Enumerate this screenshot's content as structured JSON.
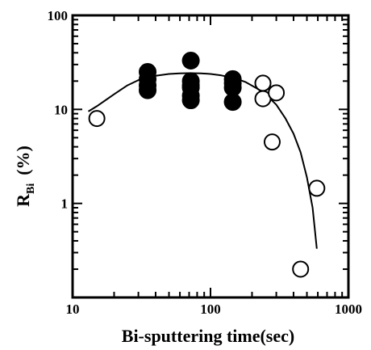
{
  "chart_data": {
    "type": "scatter",
    "xlabel": "Bi-sputtering time(sec)",
    "ylabel": {
      "main": "R",
      "sub": "Bi",
      "unit": "(%)"
    },
    "x_scale": "log",
    "y_scale": "log",
    "xlim": [
      10,
      1000
    ],
    "ylim": [
      0.1,
      100
    ],
    "x_ticks": [
      "10",
      "100",
      "1000"
    ],
    "y_ticks": [
      "1",
      "10",
      "100"
    ],
    "grid": false,
    "series": [
      {
        "marker": "filled-circle",
        "x": [
          35,
          35,
          35,
          35,
          72,
          72,
          72,
          72,
          72,
          72,
          145,
          145,
          145,
          145
        ],
        "y": [
          25,
          21,
          18,
          16,
          33,
          20,
          17,
          14,
          12.5,
          18,
          21,
          19,
          17,
          12
        ]
      },
      {
        "marker": "open-circle",
        "x": [
          15,
          240,
          240,
          300,
          280,
          450,
          590
        ],
        "y": [
          8,
          19,
          13,
          15,
          4.5,
          0.2,
          1.45
        ]
      }
    ],
    "fit_curve": {
      "x": [
        13,
        15,
        20,
        25,
        30,
        40,
        50,
        60,
        70,
        85,
        100,
        120,
        150,
        180,
        220,
        260,
        300,
        350,
        400,
        450,
        500,
        550,
        590
      ],
      "y": [
        9.5,
        10.8,
        14.5,
        18,
        20.5,
        22.8,
        23.8,
        24.2,
        24.3,
        24.2,
        23.8,
        23,
        21.5,
        19.5,
        16.5,
        13.8,
        11.2,
        8,
        5.5,
        3.5,
        1.9,
        0.9,
        0.33
      ]
    }
  }
}
